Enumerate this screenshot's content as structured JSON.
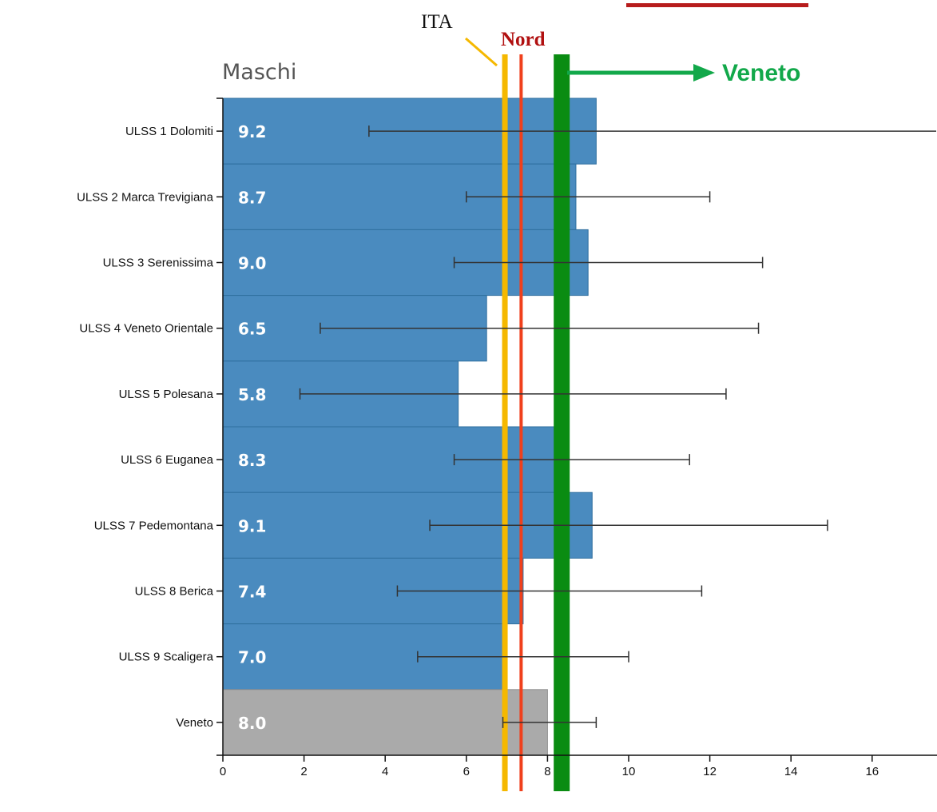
{
  "chart_data": {
    "type": "bar",
    "orientation": "horizontal",
    "title": "Maschi",
    "categories": [
      "ULSS 1 Dolomiti",
      "ULSS 2 Marca Trevigiana",
      "ULSS 3 Serenissima",
      "ULSS 4 Veneto Orientale",
      "ULSS 5 Polesana",
      "ULSS 6 Euganea",
      "ULSS 7 Pedemontana",
      "ULSS 8 Berica",
      "ULSS 9 Scaligera",
      "Veneto"
    ],
    "values": [
      9.2,
      8.7,
      9.0,
      6.5,
      5.8,
      8.3,
      9.1,
      7.4,
      7.0,
      8.0
    ],
    "value_labels": [
      "9.2",
      "8.7",
      "9.0",
      "6.5",
      "5.8",
      "8.3",
      "9.1",
      "7.4",
      "7.0",
      "8.0"
    ],
    "ci_lower": [
      3.6,
      6.0,
      5.7,
      2.4,
      1.9,
      5.7,
      5.1,
      4.3,
      4.8,
      6.9
    ],
    "ci_upper": [
      17.8,
      12.0,
      13.3,
      13.2,
      12.4,
      11.5,
      14.9,
      11.8,
      10.0,
      9.2
    ],
    "bar_colors": [
      "#4a8bbf",
      "#4a8bbf",
      "#4a8bbf",
      "#4a8bbf",
      "#4a8bbf",
      "#4a8bbf",
      "#4a8bbf",
      "#4a8bbf",
      "#4a8bbf",
      "#aaaaaa"
    ],
    "xlim": [
      0,
      17.8
    ],
    "xticks": [
      0,
      2,
      4,
      6,
      8,
      10,
      12,
      14,
      16
    ],
    "xtick_labels": [
      "0",
      "2",
      "4",
      "6",
      "8",
      "10",
      "12",
      "14",
      "16"
    ],
    "grid": false,
    "reference_lines": [
      {
        "label": "ITA",
        "value": 6.95,
        "color": "#f5b800"
      },
      {
        "label": "Nord",
        "value": 7.35,
        "color": "#f0401c"
      },
      {
        "label": "Veneto",
        "value": 8.35,
        "color": "#0a8c12",
        "arrow_color": "#12a84a"
      }
    ],
    "top_decoration_color": "#b71c1c"
  }
}
